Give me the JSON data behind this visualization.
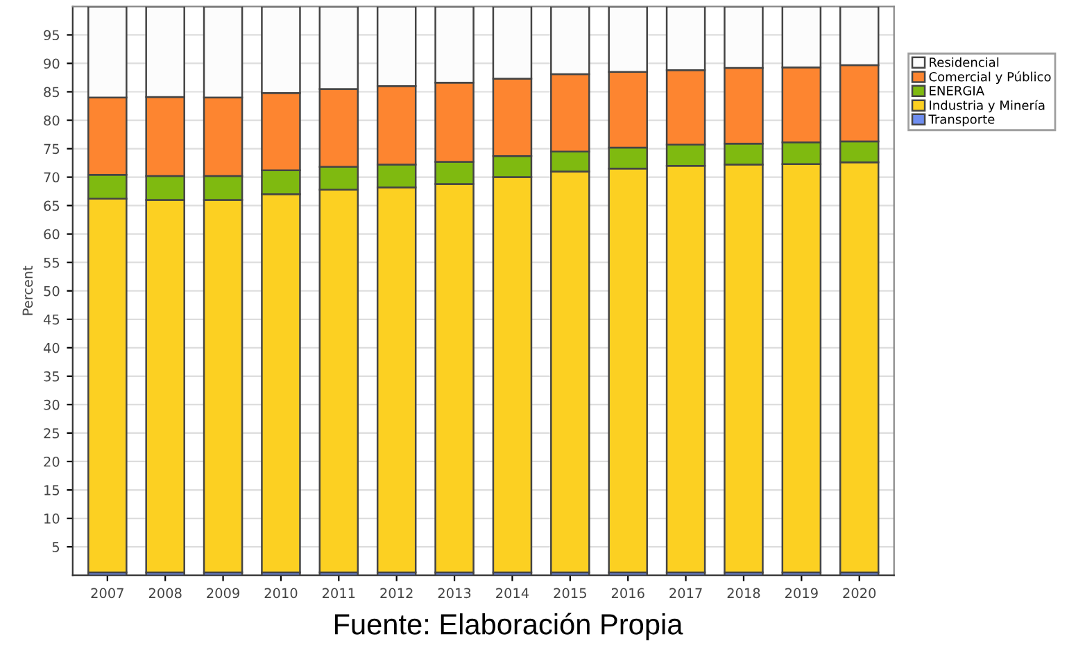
{
  "chart_data": {
    "type": "bar",
    "stacked": true,
    "ylabel": "Percent",
    "categories": [
      "2007",
      "2008",
      "2009",
      "2010",
      "2011",
      "2012",
      "2013",
      "2014",
      "2015",
      "2016",
      "2017",
      "2018",
      "2019",
      "2020"
    ],
    "series": [
      {
        "name": "Transporte",
        "color": "#6f8ef0",
        "values": [
          0.5,
          0.5,
          0.5,
          0.5,
          0.5,
          0.5,
          0.5,
          0.5,
          0.5,
          0.5,
          0.5,
          0.5,
          0.5,
          0.5
        ]
      },
      {
        "name": "Industria y Minería",
        "color": "#fcd022",
        "values": [
          65.7,
          65.5,
          65.5,
          66.5,
          67.3,
          67.7,
          68.3,
          69.5,
          70.5,
          71.0,
          71.5,
          71.7,
          71.8,
          72.1
        ]
      },
      {
        "name": "ENERGIA",
        "color": "#7fba10",
        "values": [
          4.2,
          4.2,
          4.2,
          4.2,
          4.0,
          4.0,
          3.9,
          3.7,
          3.5,
          3.7,
          3.7,
          3.7,
          3.8,
          3.7
        ]
      },
      {
        "name": "Comercial y Público",
        "color": "#fd8530",
        "values": [
          13.6,
          13.9,
          13.8,
          13.6,
          13.7,
          13.8,
          13.9,
          13.6,
          13.6,
          13.3,
          13.1,
          13.3,
          13.2,
          13.4
        ]
      },
      {
        "name": "Residencial",
        "color": "#fcfcfc",
        "values": [
          16.0,
          15.9,
          16.0,
          15.2,
          14.5,
          14.0,
          13.4,
          12.7,
          11.9,
          11.5,
          11.2,
          10.8,
          10.7,
          10.3
        ]
      }
    ],
    "ylim": [
      0,
      100
    ],
    "yticks": [
      5,
      10,
      15,
      20,
      25,
      30,
      35,
      40,
      45,
      50,
      55,
      60,
      65,
      70,
      75,
      80,
      85,
      90,
      95
    ],
    "grid": "y",
    "legend": "right",
    "annotations": [
      "Fuente: Elaboración Propia"
    ]
  }
}
